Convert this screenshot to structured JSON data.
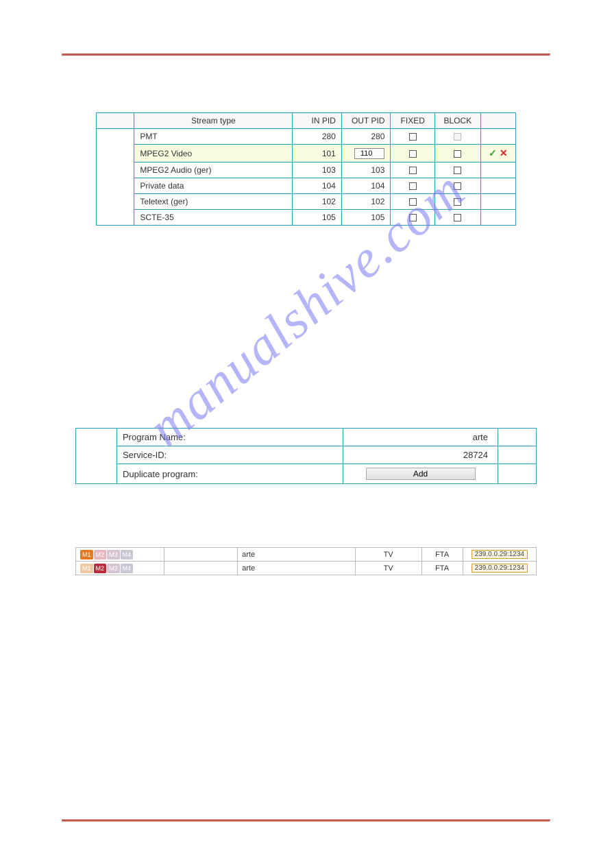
{
  "colors": {
    "rule": "#c45a4e",
    "tableBorder": "#2a9fbf",
    "headerBg": "#f5f7f8",
    "highlightRow": "#fafde0",
    "ipBorder": "#e09a2a",
    "ipBg": "#fff7e6"
  },
  "watermark": "manualshive.com",
  "streamTable": {
    "headers": {
      "type": "Stream type",
      "inpid": "IN PID",
      "outpid": "OUT PID",
      "fixed": "FIXED",
      "block": "BLOCK"
    },
    "rows": [
      {
        "type": "PMT",
        "in": "280",
        "out": "280",
        "fixed": false,
        "block": false,
        "blockDisabled": true,
        "editing": false
      },
      {
        "type": "MPEG2 Video",
        "in": "101",
        "out": "110",
        "fixed": false,
        "block": false,
        "blockDisabled": false,
        "editing": true
      },
      {
        "type": "MPEG2 Audio (ger)",
        "in": "103",
        "out": "103",
        "fixed": false,
        "block": false,
        "blockDisabled": false,
        "editing": false
      },
      {
        "type": "Private data",
        "in": "104",
        "out": "104",
        "fixed": false,
        "block": false,
        "blockDisabled": false,
        "editing": false
      },
      {
        "type": "Teletext (ger)",
        "in": "102",
        "out": "102",
        "fixed": false,
        "block": false,
        "blockDisabled": false,
        "editing": false
      },
      {
        "type": "SCTE-35",
        "in": "105",
        "out": "105",
        "fixed": false,
        "block": false,
        "blockDisabled": false,
        "editing": false
      }
    ],
    "confirmGlyph": "✓",
    "cancelGlyph": "✕"
  },
  "program": {
    "nameLabel": "Program Name:",
    "nameValue": "arte",
    "sidLabel": "Service-ID:",
    "sidValue": "28724",
    "dupLabel": "Duplicate program:",
    "addButton": "Add"
  },
  "tagLabels": [
    "M1",
    "M2",
    "M3",
    "M4"
  ],
  "tagColors": {
    "active": [
      "#e77822",
      "#bb2a3a",
      "#9c5b8a",
      "#6d6d8a"
    ],
    "inactive": [
      "#f3c9a5",
      "#e6b7bc",
      "#d7c4d3",
      "#c8c8d4"
    ]
  },
  "addrRows": [
    {
      "activeTag": 0,
      "name": "arte",
      "kind": "TV",
      "access": "FTA",
      "ip": "239.0.0.29:1234"
    },
    {
      "activeTag": 1,
      "name": "arte",
      "kind": "TV",
      "access": "FTA",
      "ip": "239.0.0.29:1234"
    }
  ]
}
